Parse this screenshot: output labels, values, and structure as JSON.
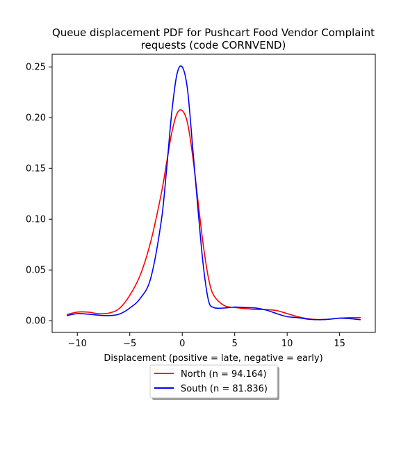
{
  "chart_data": {
    "type": "line",
    "title_line1": "Queue displacement PDF for Pushcart Food Vendor Complaint",
    "title_line2": "requests (code CORNVEND)",
    "xlabel": "Displacement (positive = late, negative = early)",
    "ylabel": "",
    "xlim": [
      -12.4,
      18.4
    ],
    "ylim": [
      -0.0115,
      0.2625
    ],
    "xticks": [
      -10,
      -5,
      0,
      5,
      10,
      15
    ],
    "xtick_labels": [
      "−10",
      "−5",
      "0",
      "5",
      "10",
      "15"
    ],
    "yticks": [
      0.0,
      0.05,
      0.1,
      0.15,
      0.2,
      0.25
    ],
    "ytick_labels": [
      "0.00",
      "0.05",
      "0.10",
      "0.15",
      "0.20",
      "0.25"
    ],
    "grid": false,
    "legend_position": "below",
    "series": [
      {
        "name": "North (n = 94.164)",
        "color": "#ff0000",
        "x": [
          -11,
          -10,
          -9,
          -8,
          -7,
          -6,
          -5,
          -4,
          -3,
          -2,
          -1.5,
          -1,
          -0.5,
          0,
          0.5,
          1,
          1.5,
          2,
          2.5,
          3,
          4,
          5,
          6,
          7,
          8,
          9,
          10,
          11,
          12,
          13,
          14,
          15,
          16,
          17
        ],
        "y": [
          0.006,
          0.0085,
          0.0085,
          0.007,
          0.0075,
          0.012,
          0.025,
          0.045,
          0.078,
          0.125,
          0.155,
          0.185,
          0.204,
          0.207,
          0.195,
          0.162,
          0.118,
          0.075,
          0.042,
          0.025,
          0.015,
          0.013,
          0.012,
          0.011,
          0.011,
          0.01,
          0.007,
          0.004,
          0.002,
          0.001,
          0.0015,
          0.0025,
          0.003,
          0.003
        ]
      },
      {
        "name": "South (n = 81.836)",
        "color": "#0000ff",
        "x": [
          -11,
          -10,
          -9,
          -8,
          -7,
          -6,
          -5,
          -4,
          -3,
          -2,
          -1.5,
          -1,
          -0.5,
          0,
          0.5,
          1,
          1.5,
          2,
          2.5,
          3,
          4,
          5,
          6,
          7,
          8,
          9,
          10,
          11,
          12,
          13,
          14,
          15,
          16,
          17
        ],
        "y": [
          0.005,
          0.007,
          0.0065,
          0.0055,
          0.005,
          0.0065,
          0.0125,
          0.022,
          0.042,
          0.098,
          0.148,
          0.205,
          0.243,
          0.25,
          0.228,
          0.17,
          0.11,
          0.055,
          0.02,
          0.013,
          0.0125,
          0.0135,
          0.013,
          0.0125,
          0.0105,
          0.007,
          0.004,
          0.003,
          0.0015,
          0.001,
          0.0015,
          0.0025,
          0.002,
          0.001
        ]
      }
    ]
  }
}
